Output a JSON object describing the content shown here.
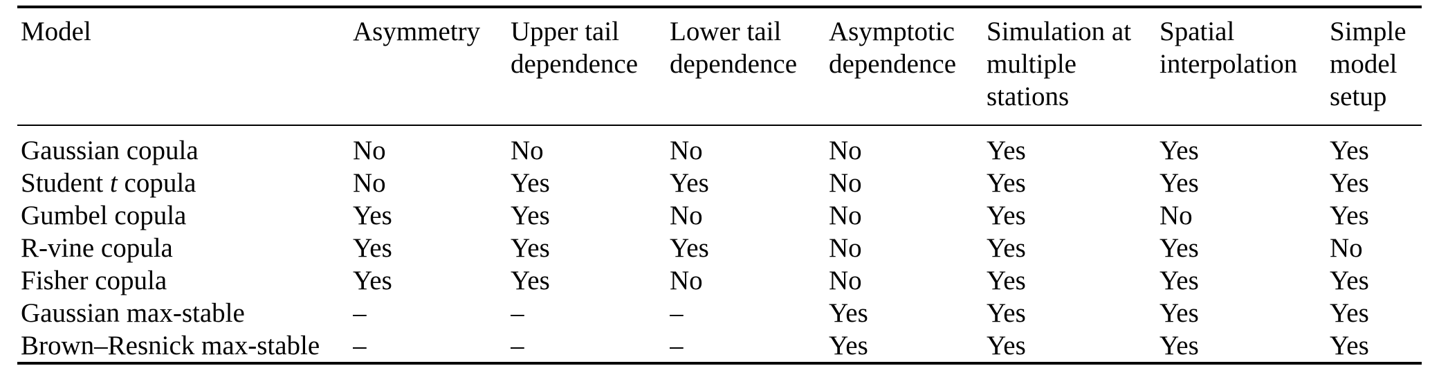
{
  "page": {
    "background": "#ffffff",
    "text_color": "#000000",
    "rule_color": "#000000"
  },
  "table": {
    "columns": [
      {
        "id": "model",
        "lines": [
          "Model"
        ]
      },
      {
        "id": "asymmetry",
        "lines": [
          "Asymmetry"
        ]
      },
      {
        "id": "upper-tail-dependence",
        "lines": [
          "Upper tail",
          "dependence"
        ]
      },
      {
        "id": "lower-tail-dependence",
        "lines": [
          "Lower tail",
          "dependence"
        ]
      },
      {
        "id": "asymptotic-dependence",
        "lines": [
          "Asymptotic",
          "dependence"
        ]
      },
      {
        "id": "simulation-at-multiple-stations",
        "lines": [
          "Simulation at",
          "multiple",
          "stations"
        ]
      },
      {
        "id": "spatial-interpolation",
        "lines": [
          "Spatial",
          "interpolation"
        ]
      },
      {
        "id": "simple-model-setup",
        "lines": [
          "Simple",
          "model",
          "setup"
        ]
      }
    ],
    "rows": [
      {
        "model": [
          {
            "t": "Gaussian copula"
          }
        ],
        "cells": [
          "No",
          "No",
          "No",
          "No",
          "Yes",
          "Yes",
          "Yes"
        ]
      },
      {
        "model": [
          {
            "t": "Student "
          },
          {
            "t": "t",
            "i": true
          },
          {
            "t": " copula"
          }
        ],
        "cells": [
          "No",
          "Yes",
          "Yes",
          "No",
          "Yes",
          "Yes",
          "Yes"
        ]
      },
      {
        "model": [
          {
            "t": "Gumbel copula"
          }
        ],
        "cells": [
          "Yes",
          "Yes",
          "No",
          "No",
          "Yes",
          "No",
          "Yes"
        ]
      },
      {
        "model": [
          {
            "t": "R-vine copula"
          }
        ],
        "cells": [
          "Yes",
          "Yes",
          "Yes",
          "No",
          "Yes",
          "Yes",
          "No"
        ]
      },
      {
        "model": [
          {
            "t": "Fisher copula"
          }
        ],
        "cells": [
          "Yes",
          "Yes",
          "No",
          "No",
          "Yes",
          "Yes",
          "Yes"
        ]
      },
      {
        "model": [
          {
            "t": "Gaussian max-stable"
          }
        ],
        "cells": [
          "–",
          "–",
          "–",
          "Yes",
          "Yes",
          "Yes",
          "Yes"
        ]
      },
      {
        "model": [
          {
            "t": "Brown–Resnick max-stable"
          }
        ],
        "cells": [
          "–",
          "–",
          "–",
          "Yes",
          "Yes",
          "Yes",
          "Yes"
        ]
      }
    ]
  }
}
